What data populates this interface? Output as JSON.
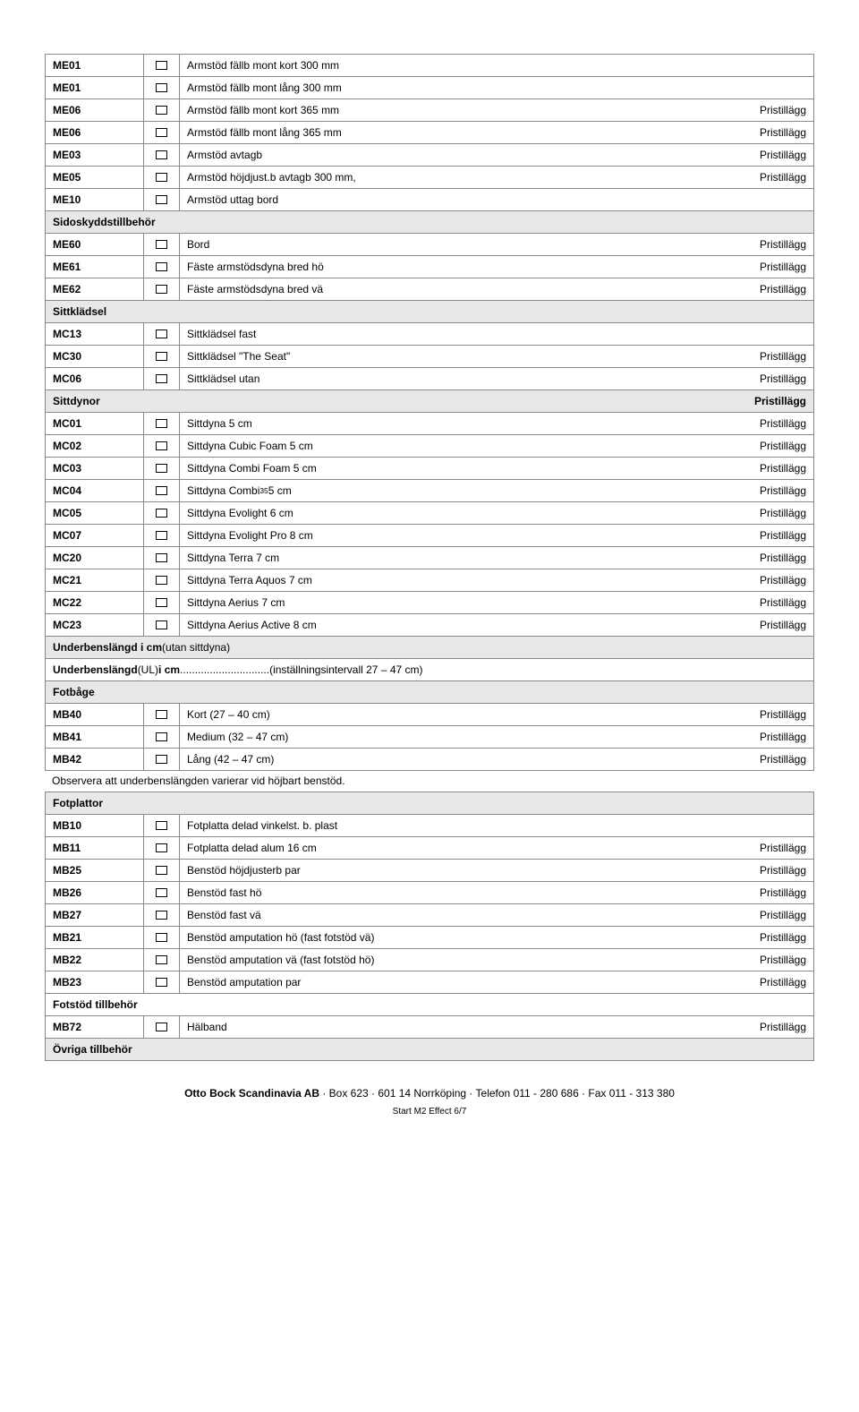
{
  "sections": [
    {
      "type": "rows",
      "rows": [
        {
          "code": "ME01",
          "desc": "Armstöd fällb mont kort 300 mm",
          "price": ""
        },
        {
          "code": "ME01",
          "desc": "Armstöd fällb mont lång 300 mm",
          "price": ""
        },
        {
          "code": "ME06",
          "desc": "Armstöd fällb mont kort 365 mm",
          "price": "Pristillägg"
        },
        {
          "code": "ME06",
          "desc": "Armstöd fällb mont lång 365 mm",
          "price": "Pristillägg"
        },
        {
          "code": "ME03",
          "desc": "Armstöd avtagb",
          "price": "Pristillägg"
        },
        {
          "code": "ME05",
          "desc": "Armstöd höjdjust.b avtagb 300 mm,",
          "price": "Pristillägg"
        },
        {
          "code": "ME10",
          "desc": "Armstöd uttag bord",
          "price": ""
        }
      ]
    },
    {
      "type": "header",
      "title": "Sidoskyddstillbehör"
    },
    {
      "type": "rows",
      "rows": [
        {
          "code": "ME60",
          "desc": "Bord",
          "price": "Pristillägg"
        },
        {
          "code": "ME61",
          "desc": "Fäste armstödsdyna bred hö",
          "price": "Pristillägg"
        },
        {
          "code": "ME62",
          "desc": "Fäste armstödsdyna bred vä",
          "price": "Pristillägg"
        }
      ]
    },
    {
      "type": "header",
      "title": "Sittklädsel"
    },
    {
      "type": "rows",
      "rows": [
        {
          "code": "MC13",
          "desc": "Sittklädsel fast",
          "price": ""
        },
        {
          "code": "MC30",
          "desc": "Sittklädsel \"The Seat\"",
          "price": "Pristillägg"
        },
        {
          "code": "MC06",
          "desc": "Sittklädsel utan",
          "price": "Pristillägg"
        }
      ]
    },
    {
      "type": "header",
      "title": "Sittdynor",
      "right": "Pristillägg"
    },
    {
      "type": "rows",
      "rows": [
        {
          "code": "MC01",
          "desc": "Sittdyna 5 cm",
          "price": "Pristillägg"
        },
        {
          "code": "MC02",
          "desc": "Sittdyna Cubic Foam 5 cm",
          "price": "Pristillägg"
        },
        {
          "code": "MC03",
          "desc": "Sittdyna Combi Foam 5 cm",
          "price": "Pristillägg"
        },
        {
          "code": "MC04",
          "desc": "Sittdyna Combi³⁵ 5 cm",
          "price": "Pristillägg",
          "sup": true
        },
        {
          "code": "MC05",
          "desc": "Sittdyna Evolight 6 cm",
          "price": "Pristillägg"
        },
        {
          "code": "MC07",
          "desc": "Sittdyna Evolight Pro 8 cm",
          "price": "Pristillägg"
        },
        {
          "code": "MC20",
          "desc": "Sittdyna Terra 7 cm",
          "price": "Pristillägg"
        },
        {
          "code": "MC21",
          "desc": "Sittdyna Terra Aquos 7 cm",
          "price": "Pristillägg"
        },
        {
          "code": "MC22",
          "desc": "Sittdyna Aerius 7 cm",
          "price": "Pristillägg"
        },
        {
          "code": "MC23",
          "desc": "Sittdyna Aerius Active 8 cm",
          "price": "Pristillägg"
        }
      ]
    },
    {
      "type": "header-html",
      "title_bold": "Underbenslängd i cm",
      "title_rest": " (utan sittdyna)"
    },
    {
      "type": "subheader-html",
      "line": "Underbenslängd  (UL) i cm..............................(inställningsintervall 27 – 47 cm)",
      "bold_prefix": "Underbenslängd",
      "mid": "  (UL) ",
      "bold_mid": "i cm",
      "dots": "..............................",
      "rest": "(inställningsintervall 27 – 47 cm)"
    },
    {
      "type": "header",
      "title": "Fotbåge"
    },
    {
      "type": "rows",
      "rows": [
        {
          "code": "MB40",
          "desc": "Kort (27 – 40 cm)",
          "price": "Pristillägg"
        },
        {
          "code": "MB41",
          "desc": "Medium (32 – 47 cm)",
          "price": "Pristillägg"
        },
        {
          "code": "MB42",
          "desc": "Lång (42 – 47 cm)",
          "price": "Pristillägg"
        }
      ]
    },
    {
      "type": "note",
      "text": "Observera att underbenslängden varierar vid höjbart benstöd."
    },
    {
      "type": "header",
      "title": "Fotplattor"
    },
    {
      "type": "rows",
      "rows": [
        {
          "code": "MB10",
          "desc": "Fotplatta delad vinkelst. b. plast",
          "price": ""
        },
        {
          "code": "MB11",
          "desc": "Fotplatta delad  alum 16 cm",
          "price": "Pristillägg"
        },
        {
          "code": "MB25",
          "desc": "Benstöd höjdjusterb par",
          "price": "Pristillägg"
        },
        {
          "code": "MB26",
          "desc": "Benstöd fast hö",
          "price": "Pristillägg"
        },
        {
          "code": "MB27",
          "desc": "Benstöd fast vä",
          "price": "Pristillägg"
        },
        {
          "code": "MB21",
          "desc": "Benstöd amputation hö (fast fotstöd vä)",
          "price": "Pristillägg"
        },
        {
          "code": "MB22",
          "desc": "Benstöd amputation vä (fast fotstöd hö)",
          "price": "Pristillägg"
        },
        {
          "code": "MB23",
          "desc": "Benstöd amputation par",
          "price": "Pristillägg"
        }
      ]
    },
    {
      "type": "subheader",
      "title": "Fotstöd tillbehör"
    },
    {
      "type": "rows",
      "rows": [
        {
          "code": "MB72",
          "desc": "Hälband",
          "price": "Pristillägg"
        }
      ]
    },
    {
      "type": "header",
      "title": "Övriga tillbehör"
    }
  ],
  "footer": {
    "company": "Otto Bock Scandinavia AB",
    "address": " · Box 623 · 601 14 Norrköping · Telefon 011 - 280 686 · Fax 011 - 313 380",
    "pageline": "Start M2 Effect   6/7"
  }
}
